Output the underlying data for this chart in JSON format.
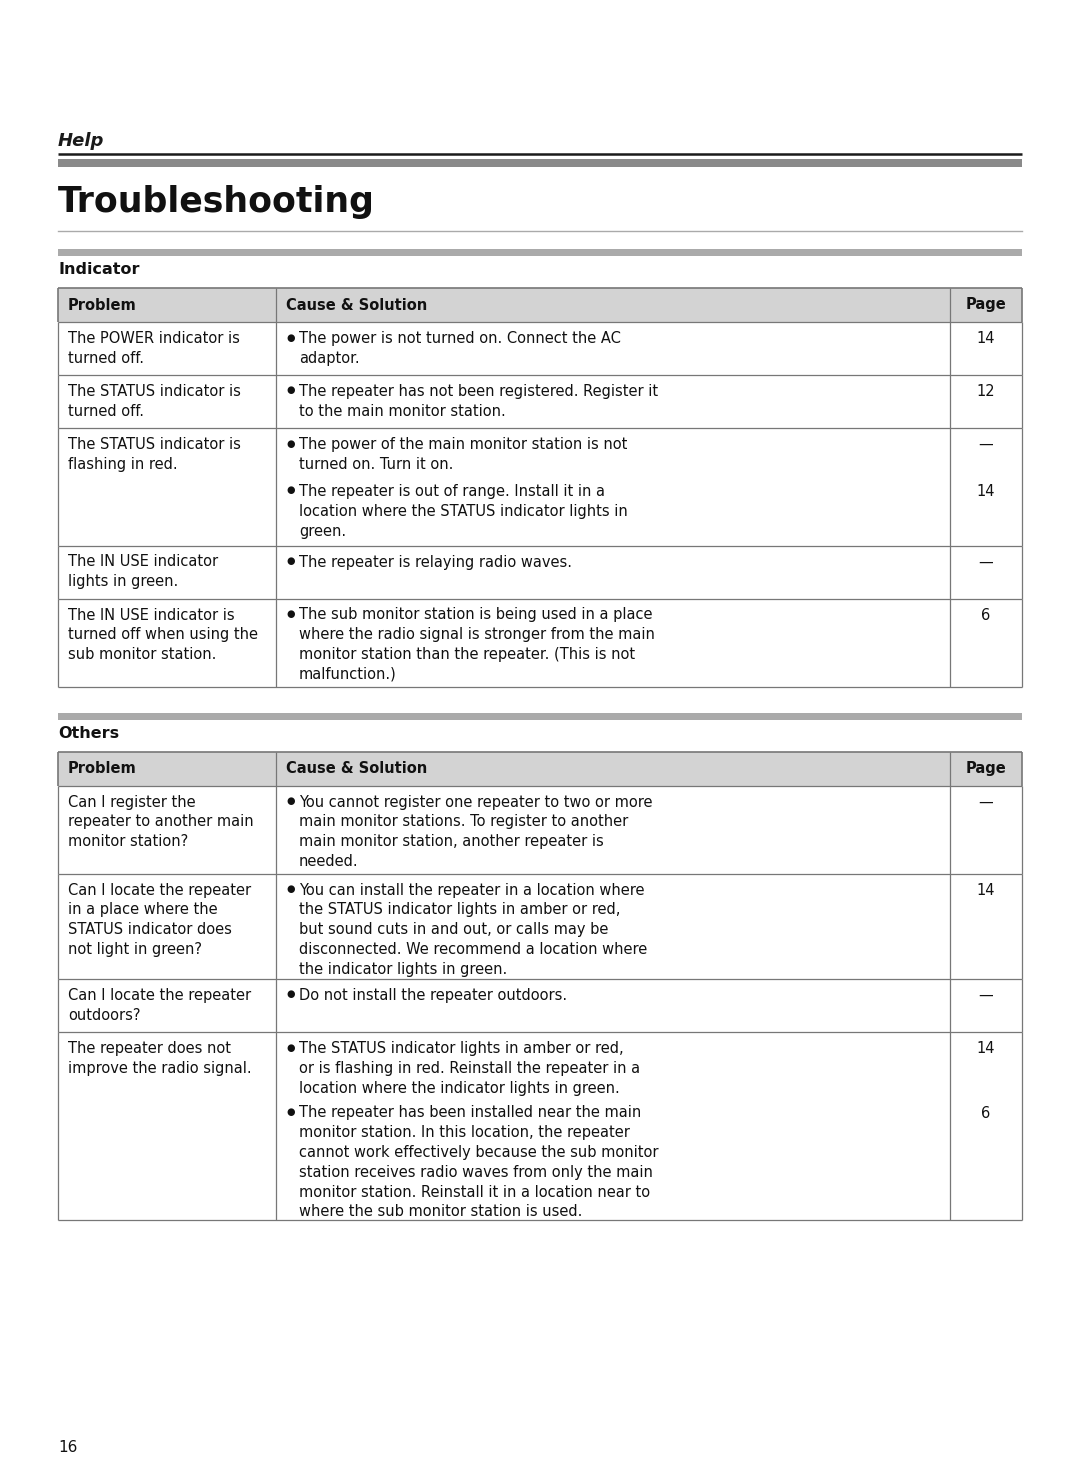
{
  "page_bg": "#ffffff",
  "help_text": "Help",
  "title_text": "Troubleshooting",
  "section1_label": "Indicator",
  "section2_label": "Others",
  "page_number": "16",
  "table_header_bg": "#d3d3d3",
  "table_border_color": "#777777",
  "col_headers": [
    "Problem",
    "Cause & Solution",
    "Page"
  ],
  "indicator_rows": [
    {
      "problem": "The POWER indicator is\nturned off.",
      "causes": [
        {
          "text": "The power is not turned on. Connect the AC\nadaptor.",
          "page": "14"
        }
      ]
    },
    {
      "problem": "The STATUS indicator is\nturned off.",
      "causes": [
        {
          "text": "The repeater has not been registered. Register it\nto the main monitor station.",
          "page": "12"
        }
      ]
    },
    {
      "problem": "The STATUS indicator is\nflashing in red.",
      "causes": [
        {
          "text": "The power of the main monitor station is not\nturned on. Turn it on.",
          "page": "—"
        },
        {
          "text": "The repeater is out of range. Install it in a\nlocation where the STATUS indicator lights in\ngreen.",
          "page": "14"
        }
      ]
    },
    {
      "problem": "The IN USE indicator\nlights in green.",
      "causes": [
        {
          "text": "The repeater is relaying radio waves.",
          "page": "—"
        }
      ]
    },
    {
      "problem": "The IN USE indicator is\nturned off when using the\nsub monitor station.",
      "causes": [
        {
          "text": "The sub monitor station is being used in a place\nwhere the radio signal is stronger from the main\nmonitor station than the repeater. (This is not\nmalfunction.)",
          "page": "6"
        }
      ]
    }
  ],
  "others_rows": [
    {
      "problem": "Can I register the\nrepeater to another main\nmonitor station?",
      "causes": [
        {
          "text": "You cannot register one repeater to two or more\nmain monitor stations. To register to another\nmain monitor station, another repeater is\nneeded.",
          "page": "—"
        }
      ]
    },
    {
      "problem": "Can I locate the repeater\nin a place where the\nSTATUS indicator does\nnot light in green?",
      "causes": [
        {
          "text": "You can install the repeater in a location where\nthe STATUS indicator lights in amber or red,\nbut sound cuts in and out, or calls may be\ndisconnected. We recommend a location where\nthe indicator lights in green.",
          "page": "14"
        }
      ]
    },
    {
      "problem": "Can I locate the repeater\noutdoors?",
      "causes": [
        {
          "text": "Do not install the repeater outdoors.",
          "page": "—"
        }
      ]
    },
    {
      "problem": "The repeater does not\nimprove the radio signal.",
      "causes": [
        {
          "text": "The STATUS indicator lights in amber or red,\nor is flashing in red. Reinstall the repeater in a\nlocation where the indicator lights in green.",
          "page": "14"
        },
        {
          "text": "The repeater has been installed near the main\nmonitor station. In this location, the repeater\ncannot work effectively because the sub monitor\nstation receives radio waves from only the main\nmonitor station. Reinstall it in a location near to\nwhere the sub monitor station is used.",
          "page": "6"
        }
      ]
    }
  ]
}
